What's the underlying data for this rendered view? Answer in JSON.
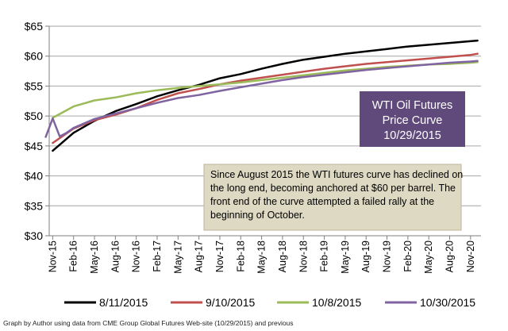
{
  "chart_data": {
    "type": "line",
    "title": [
      "WTI Oil Futures",
      "Price Curve",
      "10/29/2015"
    ],
    "annotation": [
      "Since August 2015 the WTI futures curve has declined on",
      "the long end, becoming anchored at $60 per barrel.  The",
      "front end of the curve attempted a failed rally at the",
      "beginning of October."
    ],
    "source": "Graph by Author using data from CME Group Global Futures Web-site  (10/29/2015) and previous",
    "ylim": [
      30,
      65
    ],
    "yticks": [
      30,
      35,
      40,
      45,
      50,
      55,
      60,
      65
    ],
    "ytick_labels": [
      "$30",
      "$35",
      "$40",
      "$45",
      "$50",
      "$55",
      "$60",
      "$65"
    ],
    "xticks": [
      "Nov-15",
      "Feb-16",
      "May-16",
      "Aug-16",
      "Nov-16",
      "Feb-17",
      "May-17",
      "Aug-17",
      "Nov-17",
      "Feb-18",
      "May-18",
      "Aug-18",
      "Nov-18",
      "Feb-19",
      "May-19",
      "Aug-19",
      "Nov-19",
      "Feb-20",
      "May-20",
      "Aug-20",
      "Nov-20"
    ],
    "x_start": "Nov-15",
    "x_end": "Dec-20",
    "legend_position": "bottom",
    "series": [
      {
        "name": "8/11/2015",
        "color": "#000000",
        "x": [
          "Nov-15",
          "Feb-16",
          "May-16",
          "Aug-16",
          "Nov-16",
          "Feb-17",
          "May-17",
          "Aug-17",
          "Nov-17",
          "Feb-18",
          "May-18",
          "Aug-18",
          "Nov-18",
          "Feb-19",
          "May-19",
          "Aug-19",
          "Nov-19",
          "Feb-20",
          "May-20",
          "Aug-20",
          "Nov-20",
          "Dec-20"
        ],
        "y": [
          44.2,
          47.2,
          49.2,
          50.8,
          52.0,
          53.3,
          54.3,
          55.2,
          56.3,
          57.0,
          57.9,
          58.7,
          59.4,
          59.9,
          60.4,
          60.8,
          61.2,
          61.6,
          61.9,
          62.2,
          62.5,
          62.6
        ]
      },
      {
        "name": "9/10/2015",
        "color": "#c0504d",
        "x": [
          "Nov-15",
          "Feb-16",
          "May-16",
          "Aug-16",
          "Nov-16",
          "Feb-17",
          "May-17",
          "Aug-17",
          "Nov-17",
          "Feb-18",
          "May-18",
          "Aug-18",
          "Nov-18",
          "Feb-19",
          "May-19",
          "Aug-19",
          "Nov-19",
          "Feb-20",
          "May-20",
          "Aug-20",
          "Nov-20",
          "Dec-20"
        ],
        "y": [
          45.5,
          47.9,
          49.3,
          50.2,
          51.3,
          52.7,
          53.8,
          54.5,
          55.3,
          55.9,
          56.4,
          56.9,
          57.4,
          57.9,
          58.3,
          58.7,
          59.0,
          59.3,
          59.6,
          59.9,
          60.2,
          60.4
        ]
      },
      {
        "name": "10/8/2015",
        "color": "#9bbb59",
        "x": [
          "Nov-15",
          "Feb-16",
          "May-16",
          "Aug-16",
          "Nov-16",
          "Feb-17",
          "May-17",
          "Aug-17",
          "Nov-17",
          "Feb-18",
          "May-18",
          "Aug-18",
          "Nov-18",
          "Feb-19",
          "May-19",
          "Aug-19",
          "Nov-19",
          "Feb-20",
          "May-20",
          "Aug-20",
          "Nov-20",
          "Dec-20"
        ],
        "y": [
          49.7,
          51.6,
          52.6,
          53.1,
          53.8,
          54.3,
          54.7,
          55.0,
          55.3,
          55.6,
          56.0,
          56.4,
          56.8,
          57.2,
          57.6,
          57.9,
          58.2,
          58.4,
          58.6,
          58.7,
          58.9,
          59.0
        ]
      },
      {
        "name": "10/30/2015",
        "color": "#8064a2",
        "x": [
          "Oct-15",
          "Nov-15",
          "Dec-15",
          "Jan-16",
          "Feb-16",
          "May-16",
          "Aug-16",
          "Nov-16",
          "Feb-17",
          "May-17",
          "Aug-17",
          "Nov-17",
          "Feb-18",
          "May-18",
          "Aug-18",
          "Nov-18",
          "Feb-19",
          "May-19",
          "Aug-19",
          "Nov-19",
          "Feb-20",
          "May-20",
          "Aug-20",
          "Nov-20",
          "Dec-20"
        ],
        "y": [
          46.5,
          49.6,
          46.6,
          47.2,
          48.0,
          49.5,
          50.4,
          51.3,
          52.2,
          53.0,
          53.5,
          54.2,
          54.8,
          55.4,
          56.0,
          56.5,
          56.9,
          57.3,
          57.7,
          58.0,
          58.3,
          58.6,
          58.9,
          59.1,
          59.2
        ]
      }
    ]
  }
}
